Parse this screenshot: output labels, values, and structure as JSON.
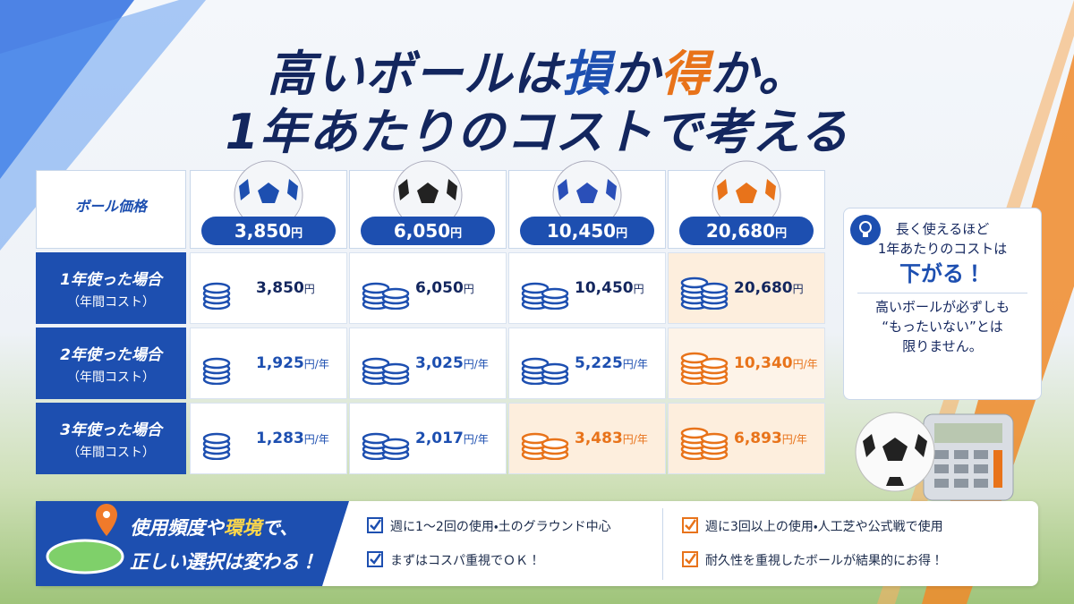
{
  "title": {
    "line1": [
      "高いボールは",
      "損",
      "か",
      "得",
      "か。"
    ],
    "line2": "1年あたりのコストで考える"
  },
  "table": {
    "header_label": "ボール価格",
    "prices": [
      {
        "amount": "3,850",
        "unit": "円"
      },
      {
        "amount": "6,050",
        "unit": "円"
      },
      {
        "amount": "10,450",
        "unit": "円"
      },
      {
        "amount": "20,680",
        "unit": "円"
      }
    ],
    "rows": [
      {
        "label": "1年使った場合",
        "sublabel": "（年間コスト）",
        "cells": [
          {
            "amount": "3,850",
            "unit": "円",
            "color": "#1d4fb0"
          },
          {
            "amount": "6,050",
            "unit": "円",
            "color": "#1d4fb0"
          },
          {
            "amount": "10,450",
            "unit": "円",
            "color": "#1d4fb0"
          },
          {
            "amount": "20,680",
            "unit": "円",
            "color": "#1d4fb0",
            "background": "#fdeedd"
          }
        ]
      },
      {
        "label": "2年使った場合",
        "sublabel": "（年間コスト）",
        "cells": [
          {
            "amount": "1,925",
            "unit": "円/年",
            "color": "#1d4fb0"
          },
          {
            "amount": "3,025",
            "unit": "円/年",
            "color": "#1d4fb0"
          },
          {
            "amount": "5,225",
            "unit": "円/年",
            "color": "#1d4fb0"
          },
          {
            "amount": "10,340",
            "unit": "円/年",
            "color": "#e8731a",
            "background": "#fdf3e8"
          }
        ]
      },
      {
        "label": "3年使った場合",
        "sublabel": "（年間コスト）",
        "cells": [
          {
            "amount": "1,283",
            "unit": "円/年",
            "color": "#1d4fb0"
          },
          {
            "amount": "2,017",
            "unit": "円/年",
            "color": "#1d4fb0"
          },
          {
            "amount": "3,483",
            "unit": "円/年",
            "color": "#e8731a",
            "background": "#fdeedd"
          },
          {
            "amount": "6,893",
            "unit": "円/年",
            "color": "#e8731a",
            "background": "#fdeedd"
          }
        ]
      }
    ]
  },
  "callout": {
    "line1": "長く使えるほど",
    "line2": "1年あたりのコストは",
    "emphasis": "下がる！",
    "line3": "高いボールが必ずしも",
    "line4": "“もったいない”とは",
    "line5": "限りません。"
  },
  "banner": {
    "line1": [
      "使用頻度や",
      "環境",
      "で、"
    ],
    "line2": "正しい選択は変わる！"
  },
  "checklist_left": [
    "週に1〜2回の使用・土のグラウンド中心",
    "まずはコスパ重視でＯＫ！"
  ],
  "checklist_right": [
    "週に3回以上の使用・人工芝や公式戦で使用",
    "耐久性を重視したボールが結果的にお得！"
  ]
}
